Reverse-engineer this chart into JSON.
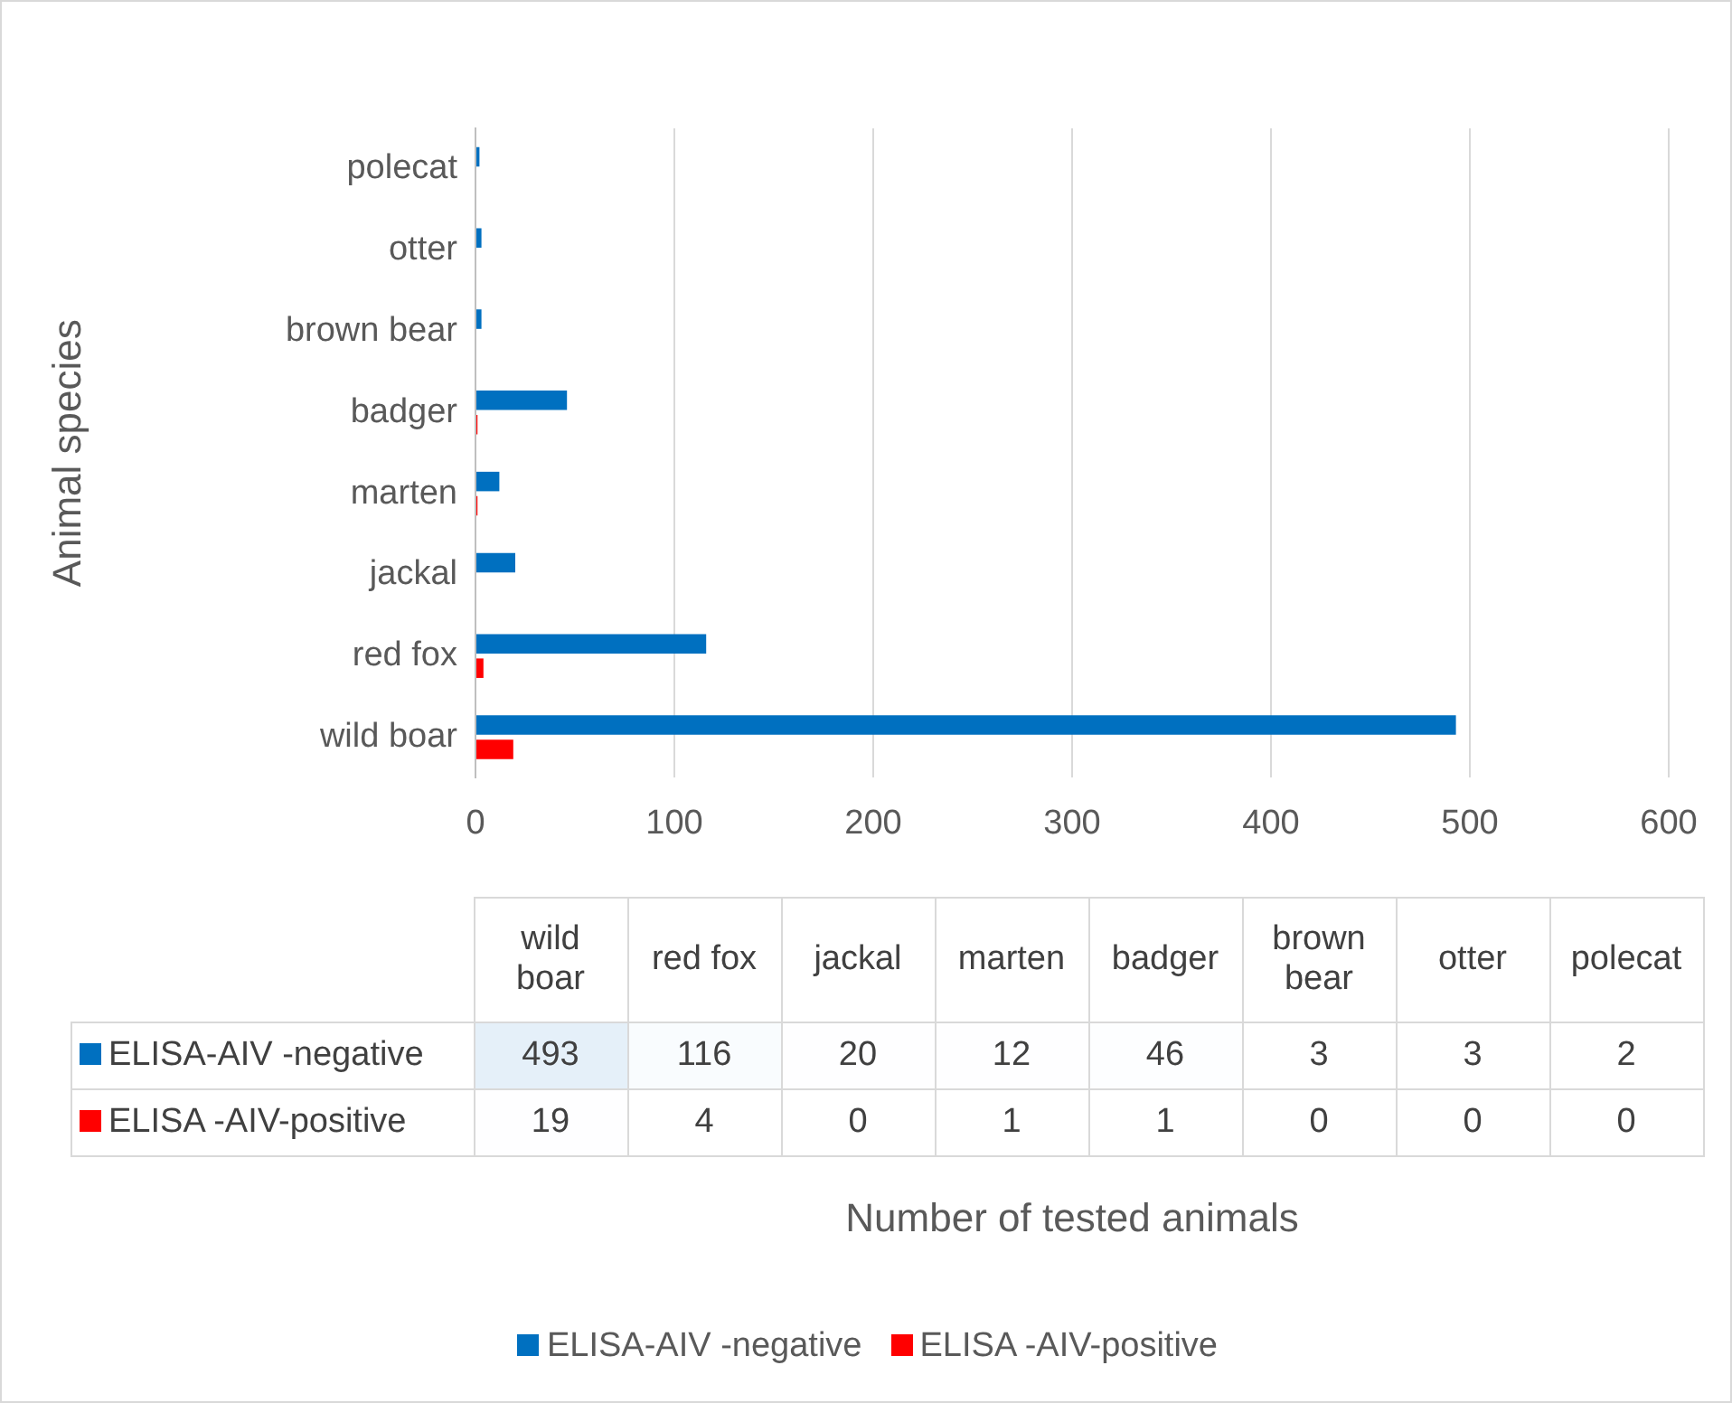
{
  "chart_data": [
    {
      "type": "bar",
      "orientation": "horizontal",
      "ylabel": "Animal species",
      "annotations": [
        "Number of tested animals"
      ],
      "categories": [
        "polecat",
        "otter",
        "brown bear",
        "badger",
        "marten",
        "jackal",
        "red fox",
        "wild boar"
      ],
      "series": [
        {
          "name": "ELISA-AIV -negative",
          "color": "#0070c0",
          "values": [
            2,
            3,
            3,
            46,
            12,
            20,
            116,
            493
          ]
        },
        {
          "name": "ELISA -AIV-positive",
          "color": "#ff0000",
          "values": [
            0,
            0,
            0,
            1,
            1,
            0,
            4,
            19
          ]
        }
      ],
      "xlim": [
        0,
        600
      ],
      "xticks": [
        0,
        100,
        200,
        300,
        400,
        500,
        600
      ],
      "grid": "x",
      "legend": "bottom"
    },
    {
      "type": "heatmap",
      "categories": [
        "wild boar",
        "red fox",
        "jackal",
        "marten",
        "badger",
        "brown bear",
        "otter",
        "polecat"
      ],
      "y_categories": [
        "ELISA-AIV -negative",
        "ELISA -AIV-positive"
      ],
      "cells": [
        [
          493,
          116,
          20,
          12,
          46,
          3,
          3,
          2
        ],
        [
          19,
          4,
          0,
          1,
          1,
          0,
          0,
          0
        ]
      ],
      "cell_labels": [
        [
          "493",
          "116",
          "20",
          "12",
          "46",
          "3",
          "3",
          "2"
        ],
        [
          "19",
          "4",
          "0",
          "1",
          "1",
          "0",
          "0",
          "0"
        ]
      ]
    }
  ]
}
